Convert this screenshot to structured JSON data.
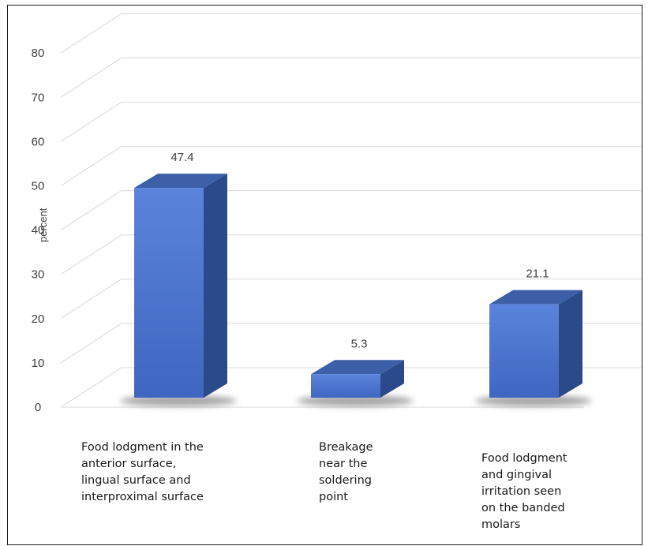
{
  "chart_data": {
    "type": "bar",
    "categories": [
      "Food lodgment in the\nanterior surface,\nlingual surface and\ninterproximal surface",
      "Breakage\nnear the\nsoldering\npoint",
      "Food lodgment\nand gingival\nirritation seen\non the banded\nmolars"
    ],
    "values": [
      47.4,
      5.3,
      21.1
    ],
    "value_labels": [
      "47.4",
      "5.3",
      "21.1"
    ],
    "ylabel": "percent",
    "ylim": [
      0,
      80
    ],
    "yticks": [
      "0",
      "10",
      "20",
      "30",
      "40",
      "50",
      "60",
      "70",
      "80"
    ],
    "grid": true,
    "style": "3d-column",
    "colors": {
      "front": "#4a72cc",
      "side": "#2b4a8c",
      "top": "#3d5fa8",
      "grid": "#d9d9d9"
    }
  }
}
